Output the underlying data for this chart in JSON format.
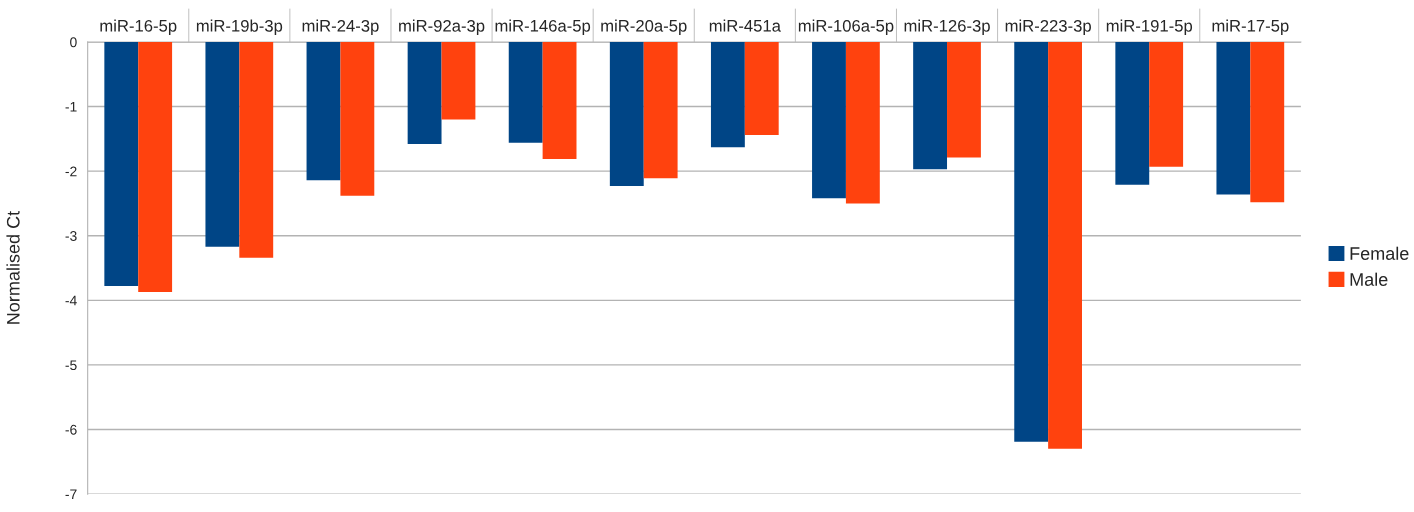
{
  "chart_data": {
    "type": "bar",
    "ylabel": "Normalised Ct",
    "categories": [
      "miR-16-5p",
      "miR-19b-3p",
      "miR-24-3p",
      "miR-92a-3p",
      "miR-146a-5p",
      "miR-20a-5p",
      "miR-451a",
      "miR-106a-5p",
      "miR-126-3p",
      "miR-223-3p",
      "miR-191-5p",
      "miR-17-5p"
    ],
    "series": [
      {
        "name": "Female",
        "color": "#004586",
        "values": [
          -3.78,
          -3.17,
          -2.14,
          -1.58,
          -1.56,
          -2.23,
          -1.63,
          -2.42,
          -1.97,
          -6.19,
          -2.21,
          -2.36
        ]
      },
      {
        "name": "Male",
        "color": "#ff420e",
        "values": [
          -3.87,
          -3.34,
          -2.38,
          -1.2,
          -1.81,
          -2.11,
          -1.44,
          -2.5,
          -1.79,
          -6.3,
          -1.93,
          -2.48
        ]
      }
    ],
    "ylim": [
      -7,
      0
    ],
    "yticks": [
      0,
      -1,
      -2,
      -3,
      -4,
      -5,
      -6,
      -7
    ],
    "grid": "y",
    "legend": "right"
  }
}
